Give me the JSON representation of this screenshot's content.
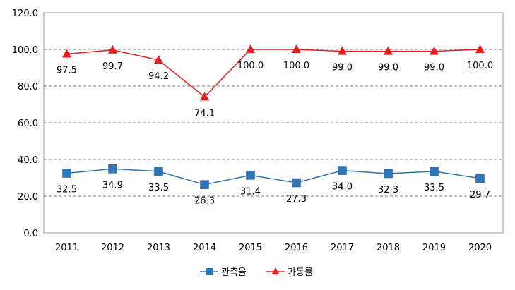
{
  "chart_data": {
    "type": "line",
    "title": "",
    "xlabel": "",
    "ylabel": "",
    "categories": [
      "2011",
      "2012",
      "2013",
      "2014",
      "2015",
      "2016",
      "2017",
      "2018",
      "2019",
      "2020"
    ],
    "ylim": [
      0,
      120
    ],
    "yticks": [
      "0.0",
      "20.0",
      "40.0",
      "60.0",
      "80.0",
      "100.0",
      "120.0"
    ],
    "grid": "horizontal dashed",
    "legend_position": "bottom",
    "series": [
      {
        "name": "관측율",
        "color": "#2E75B6",
        "marker": "square",
        "values": [
          32.5,
          34.9,
          33.5,
          26.3,
          31.4,
          27.3,
          34.0,
          32.3,
          33.5,
          29.7
        ],
        "labels": [
          "32.5",
          "34.9",
          "33.5",
          "26.3",
          "31.4",
          "27.3",
          "34.0",
          "32.3",
          "33.5",
          "29.7"
        ]
      },
      {
        "name": "가동률",
        "color": "#E81C1C",
        "marker": "triangle",
        "values": [
          97.5,
          99.7,
          94.2,
          74.1,
          100.0,
          100.0,
          99.0,
          99.0,
          99.0,
          100.0
        ],
        "labels": [
          "97.5",
          "99.7",
          "94.2",
          "74.1",
          "100.0",
          "100.0",
          "99.0",
          "99.0",
          "99.0",
          "100.0"
        ]
      }
    ]
  }
}
